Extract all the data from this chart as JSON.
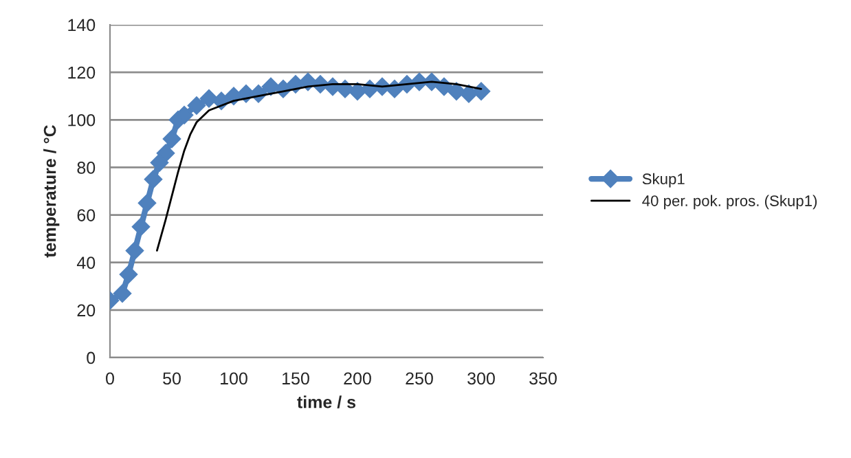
{
  "chart_data": {
    "type": "line",
    "xlabel": "time / s",
    "ylabel": "temperature / °C",
    "xlim": [
      0,
      350
    ],
    "xticks": [
      0,
      50,
      100,
      150,
      200,
      250,
      300,
      350
    ],
    "ylim": [
      0,
      140
    ],
    "yticks": [
      0,
      20,
      40,
      60,
      80,
      100,
      120,
      140
    ],
    "grid": "y",
    "legend": "right",
    "series": [
      {
        "name": "Skup1",
        "color": "#4f81bd",
        "marker": "diamond",
        "x": [
          0,
          10,
          15,
          20,
          25,
          30,
          35,
          40,
          45,
          50,
          55,
          60,
          70,
          80,
          90,
          100,
          110,
          120,
          130,
          140,
          150,
          160,
          170,
          180,
          190,
          200,
          210,
          220,
          230,
          240,
          250,
          260,
          270,
          280,
          290,
          300
        ],
        "values": [
          24,
          27,
          35,
          45,
          55,
          65,
          75,
          82,
          86,
          92,
          100,
          102,
          106,
          109,
          108,
          110,
          111,
          111,
          114,
          113,
          115,
          116,
          115,
          114,
          113,
          112,
          113,
          114,
          113,
          115,
          116,
          116,
          114,
          112,
          111,
          112
        ]
      },
      {
        "name": "40 per. pok. pros. (Skup1)",
        "color": "#000000",
        "marker": "none",
        "x": [
          38,
          45,
          50,
          55,
          60,
          65,
          70,
          80,
          90,
          100,
          110,
          120,
          140,
          160,
          180,
          200,
          220,
          240,
          260,
          280,
          300
        ],
        "values": [
          45,
          58,
          68,
          78,
          87,
          94,
          99,
          104,
          106,
          108,
          109,
          110,
          112,
          114,
          115,
          115,
          114,
          115,
          116,
          115,
          113
        ]
      }
    ]
  }
}
